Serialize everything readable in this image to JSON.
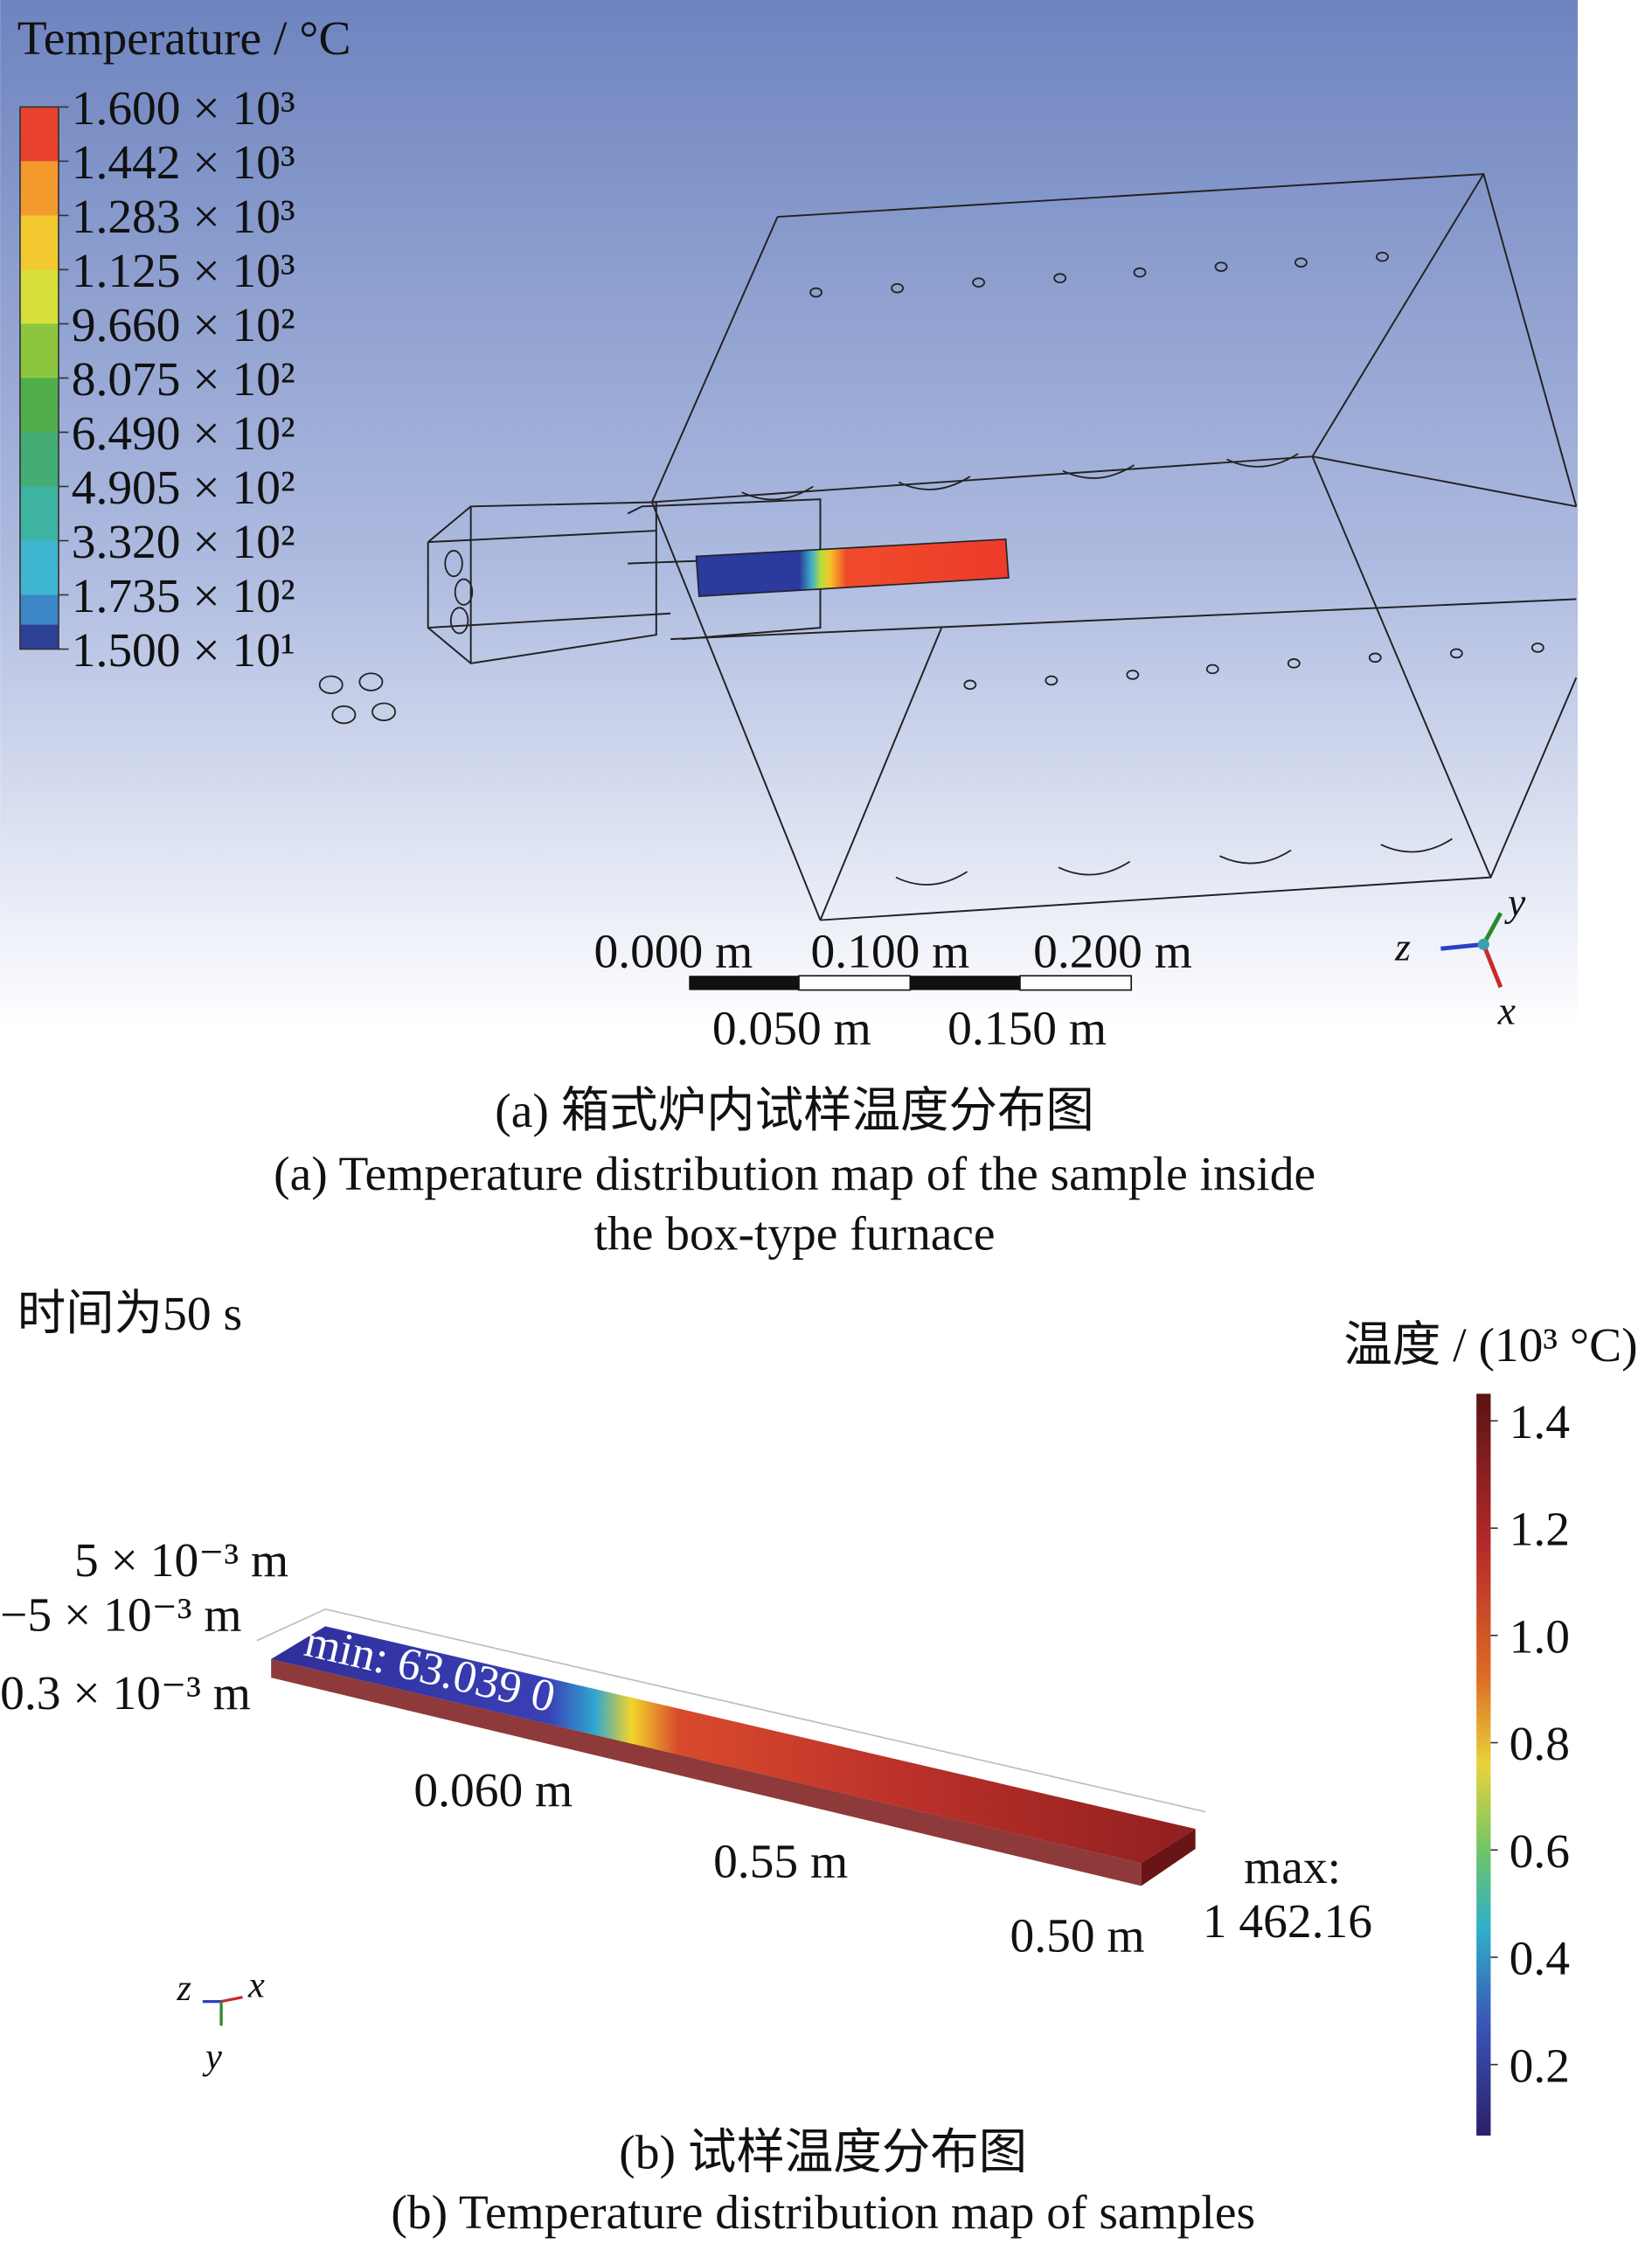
{
  "panel_a": {
    "legend_title": "Temperature / °C",
    "legend_labels": [
      "1.600 × 10³",
      "1.442 × 10³",
      "1.283 × 10³",
      "1.125 × 10³",
      "9.660 × 10²",
      "8.075 × 10²",
      "6.490 × 10²",
      "4.905 × 10²",
      "3.320 × 10²",
      "1.735 × 10²",
      "1.500 × 10¹"
    ],
    "scale_top": [
      "0.000 m",
      "0.100 m",
      "0.200 m"
    ],
    "scale_bottom": [
      "0.050 m",
      "0.150 m"
    ],
    "axes": {
      "z": "z",
      "y": "y",
      "x": "x"
    },
    "caption_cn": "(a) 箱式炉内试样温度分布图",
    "caption_en": [
      "(a) Temperature distribution map of the sample inside",
      "the box-type furnace"
    ]
  },
  "panel_b": {
    "time_label": "时间为50 s",
    "colorbar_title": "温度 / (10³ °C)",
    "colorbar_ticks": [
      "1.4",
      "1.2",
      "1.0",
      "0.8",
      "0.6",
      "0.4",
      "0.2"
    ],
    "dims": [
      "5 × 10⁻³ m",
      "−5 × 10⁻³ m",
      "0.3 × 10⁻³ m",
      "0.060 m",
      "0.55 m",
      "0.50 m"
    ],
    "min_label": "min: 63.039 0",
    "max_label": [
      "max:",
      "1 462.16"
    ],
    "axes": {
      "z": "z",
      "x": "x",
      "y": "y"
    },
    "caption_cn": "(b) 试样温度分布图",
    "caption_en": "(b) Temperature distribution map of samples"
  }
}
